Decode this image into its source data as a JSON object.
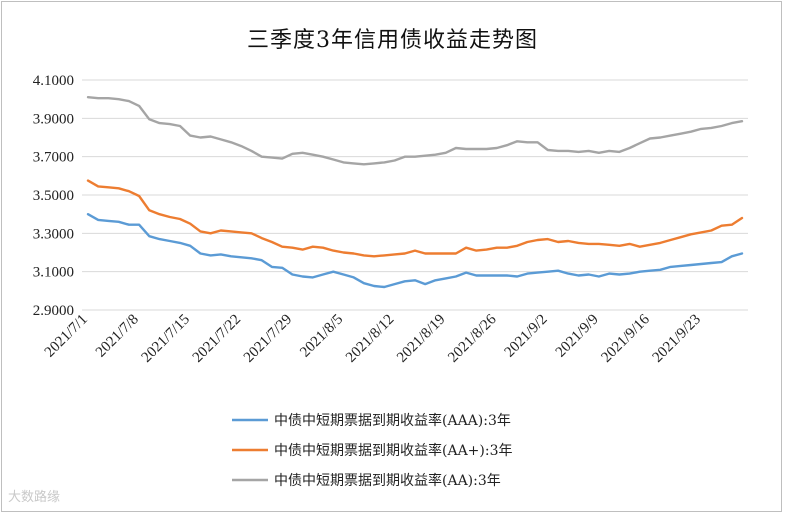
{
  "chart_data": {
    "type": "line",
    "title": "三季度3年信用债收益走势图",
    "ylim": [
      2.9,
      4.1
    ],
    "yticks": [
      "2.9000",
      "3.1000",
      "3.3000",
      "3.5000",
      "3.7000",
      "3.9000",
      "4.1000"
    ],
    "ytick_values": [
      2.9,
      3.1,
      3.3,
      3.5,
      3.7,
      3.9,
      4.1
    ],
    "grid": true,
    "legend_position": "bottom",
    "x": [
      "2021/7/1",
      "2021/7/2",
      "2021/7/5",
      "2021/7/6",
      "2021/7/7",
      "2021/7/8",
      "2021/7/9",
      "2021/7/12",
      "2021/7/13",
      "2021/7/14",
      "2021/7/15",
      "2021/7/16",
      "2021/7/19",
      "2021/7/20",
      "2021/7/21",
      "2021/7/22",
      "2021/7/23",
      "2021/7/26",
      "2021/7/27",
      "2021/7/28",
      "2021/7/29",
      "2021/7/30",
      "2021/8/2",
      "2021/8/3",
      "2021/8/4",
      "2021/8/5",
      "2021/8/6",
      "2021/8/9",
      "2021/8/10",
      "2021/8/11",
      "2021/8/12",
      "2021/8/13",
      "2021/8/16",
      "2021/8/17",
      "2021/8/18",
      "2021/8/19",
      "2021/8/20",
      "2021/8/23",
      "2021/8/24",
      "2021/8/25",
      "2021/8/26",
      "2021/8/27",
      "2021/8/30",
      "2021/8/31",
      "2021/9/1",
      "2021/9/2",
      "2021/9/3",
      "2021/9/6",
      "2021/9/7",
      "2021/9/8",
      "2021/9/9",
      "2021/9/10",
      "2021/9/13",
      "2021/9/14",
      "2021/9/15",
      "2021/9/16",
      "2021/9/17",
      "2021/9/22",
      "2021/9/23",
      "2021/9/24",
      "2021/9/26",
      "2021/9/27",
      "2021/9/28",
      "2021/9/29",
      "2021/9/30"
    ],
    "xtick_labels": [
      "2021/7/1",
      "2021/7/8",
      "2021/7/15",
      "2021/7/22",
      "2021/7/29",
      "2021/8/5",
      "2021/8/12",
      "2021/8/19",
      "2021/8/26",
      "2021/9/2",
      "2021/9/9",
      "2021/9/16",
      "2021/9/23"
    ],
    "xtick_index": [
      0,
      5,
      10,
      15,
      20,
      25,
      30,
      35,
      40,
      45,
      50,
      55,
      60
    ],
    "series": [
      {
        "name": "中债中短期票据到期收益率(AAA):3年",
        "color": "#5b9bd5",
        "values": [
          3.4,
          3.37,
          3.365,
          3.36,
          3.345,
          3.345,
          3.285,
          3.27,
          3.26,
          3.25,
          3.235,
          3.195,
          3.185,
          3.19,
          3.18,
          3.175,
          3.17,
          3.16,
          3.125,
          3.12,
          3.085,
          3.075,
          3.07,
          3.085,
          3.1,
          3.085,
          3.07,
          3.04,
          3.025,
          3.02,
          3.035,
          3.05,
          3.055,
          3.035,
          3.055,
          3.065,
          3.075,
          3.095,
          3.08,
          3.08,
          3.08,
          3.08,
          3.075,
          3.09,
          3.095,
          3.1,
          3.105,
          3.09,
          3.08,
          3.085,
          3.075,
          3.09,
          3.085,
          3.09,
          3.1,
          3.105,
          3.11,
          3.125,
          3.13,
          3.135,
          3.14,
          3.145,
          3.15,
          3.18,
          3.195
        ]
      },
      {
        "name": "中债中短期票据到期收益率(AA+):3年",
        "color": "#ed7d31",
        "values": [
          3.575,
          3.545,
          3.54,
          3.535,
          3.52,
          3.495,
          3.42,
          3.4,
          3.385,
          3.375,
          3.35,
          3.31,
          3.3,
          3.315,
          3.31,
          3.305,
          3.3,
          3.275,
          3.255,
          3.23,
          3.225,
          3.215,
          3.23,
          3.225,
          3.21,
          3.2,
          3.195,
          3.185,
          3.18,
          3.185,
          3.19,
          3.195,
          3.21,
          3.195,
          3.195,
          3.195,
          3.195,
          3.225,
          3.21,
          3.215,
          3.225,
          3.225,
          3.235,
          3.255,
          3.265,
          3.27,
          3.255,
          3.26,
          3.25,
          3.245,
          3.245,
          3.24,
          3.235,
          3.245,
          3.23,
          3.24,
          3.25,
          3.265,
          3.28,
          3.295,
          3.305,
          3.315,
          3.34,
          3.345,
          3.38
        ]
      },
      {
        "name": "中债中短期票据到期收益率(AA):3年",
        "color": "#a5a5a5",
        "values": [
          4.01,
          4.005,
          4.005,
          4.0,
          3.99,
          3.965,
          3.895,
          3.875,
          3.87,
          3.86,
          3.81,
          3.8,
          3.805,
          3.79,
          3.775,
          3.755,
          3.73,
          3.7,
          3.695,
          3.69,
          3.715,
          3.72,
          3.71,
          3.7,
          3.685,
          3.67,
          3.665,
          3.66,
          3.665,
          3.67,
          3.68,
          3.7,
          3.7,
          3.705,
          3.71,
          3.72,
          3.745,
          3.74,
          3.74,
          3.74,
          3.745,
          3.76,
          3.78,
          3.775,
          3.775,
          3.735,
          3.73,
          3.73,
          3.725,
          3.73,
          3.72,
          3.73,
          3.725,
          3.745,
          3.77,
          3.795,
          3.8,
          3.81,
          3.82,
          3.83,
          3.845,
          3.85,
          3.86,
          3.875,
          3.885
        ]
      }
    ]
  },
  "watermark": "大数路缘"
}
